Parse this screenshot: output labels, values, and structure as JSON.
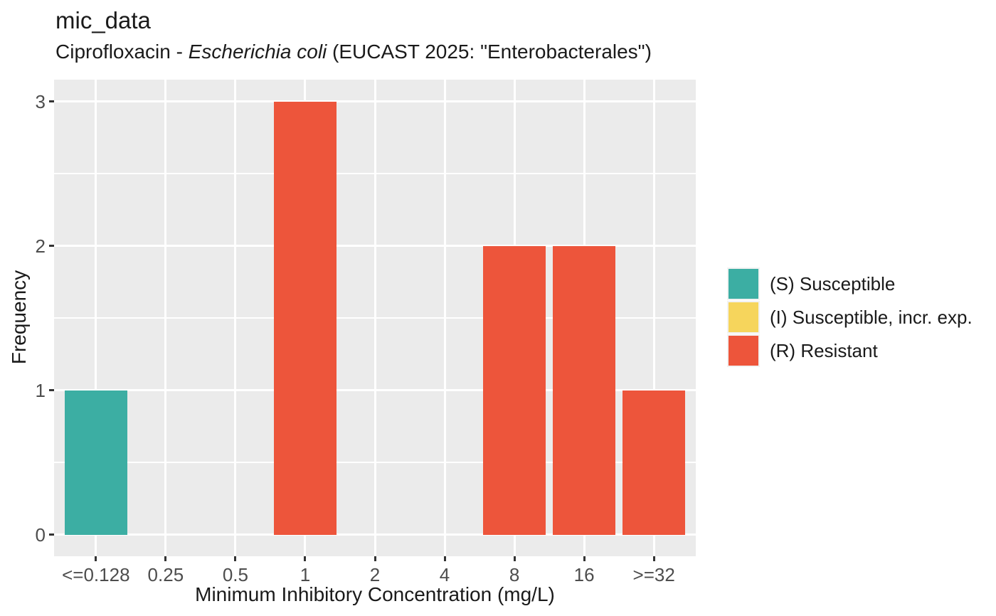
{
  "header": {
    "title": "mic_data",
    "subtitle_prefix": "Ciprofloxacin - ",
    "subtitle_italic": "Escherichia coli",
    "subtitle_suffix": " (EUCAST 2025: \"Enterobacterales\")"
  },
  "axes": {
    "x_title": "Minimum Inhibitory Concentration (mg/L)",
    "y_title": "Frequency",
    "x_tick_labels": [
      "<=0.128",
      "0.25",
      "0.5",
      "1",
      "2",
      "4",
      "8",
      "16",
      ">=32"
    ],
    "y_tick_labels": [
      "0",
      "1",
      "2",
      "3"
    ]
  },
  "legend": {
    "items": [
      {
        "code": "S",
        "label": "(S) Susceptible",
        "color": "#3CAEA3"
      },
      {
        "code": "I",
        "label": "(I) Susceptible, incr. exp.",
        "color": "#F6D55C"
      },
      {
        "code": "R",
        "label": "(R) Resistant",
        "color": "#ED553B"
      }
    ]
  },
  "colors": {
    "panel_background": "#EBEBEB",
    "grid": "#FFFFFF",
    "legend_key_background": "#F2F2F2",
    "axis_text": "#4D4D4D",
    "tick_mark": "#333333",
    "title_text": "#1A1A1A"
  },
  "chart_data": {
    "type": "bar",
    "title": "mic_data",
    "subtitle": "Ciprofloxacin - Escherichia coli (EUCAST 2025: \"Enterobacterales\")",
    "xlabel": "Minimum Inhibitory Concentration (mg/L)",
    "ylabel": "Frequency",
    "categories": [
      "<=0.128",
      "0.25",
      "0.5",
      "1",
      "2",
      "4",
      "8",
      "16",
      ">=32"
    ],
    "values": [
      1,
      0,
      0,
      3,
      0,
      0,
      2,
      2,
      1
    ],
    "interpretations": [
      "S",
      null,
      null,
      "R",
      null,
      null,
      "R",
      "R",
      "R"
    ],
    "series": [
      {
        "name": "(S) Susceptible",
        "color": "#3CAEA3",
        "values": [
          1,
          0,
          0,
          0,
          0,
          0,
          0,
          0,
          0
        ]
      },
      {
        "name": "(I) Susceptible, incr. exp.",
        "color": "#F6D55C",
        "values": [
          0,
          0,
          0,
          0,
          0,
          0,
          0,
          0,
          0
        ]
      },
      {
        "name": "(R) Resistant",
        "color": "#ED553B",
        "values": [
          0,
          0,
          0,
          3,
          0,
          0,
          2,
          2,
          1
        ]
      }
    ],
    "ylim": [
      0,
      3
    ],
    "yticks": [
      0,
      1,
      2,
      3
    ],
    "minor_yticks": [
      0.5,
      1.5,
      2.5
    ],
    "grid": true,
    "legend_position": "right",
    "bar_width_fraction": 0.9
  }
}
